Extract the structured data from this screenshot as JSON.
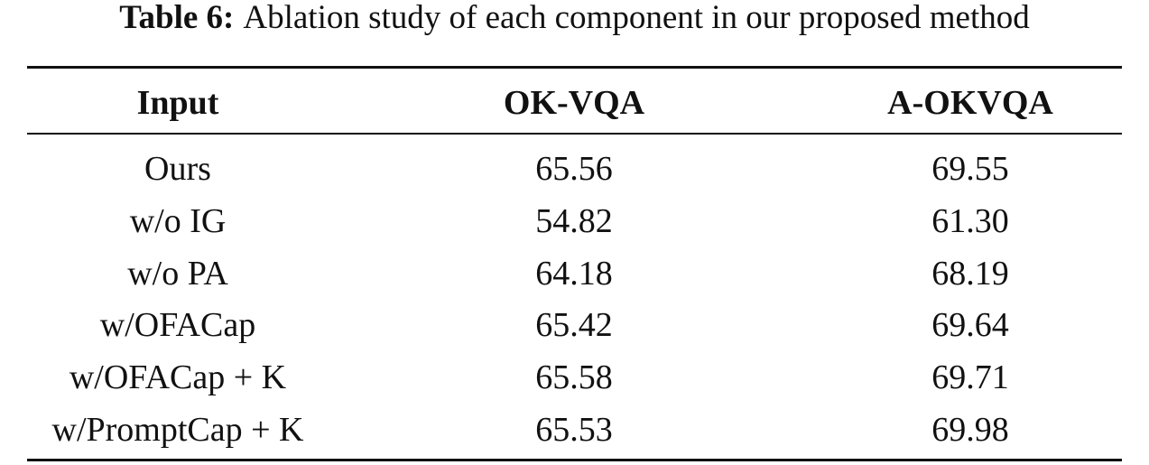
{
  "caption": {
    "label": "Table 6:",
    "text": "Ablation study of each component in our proposed method"
  },
  "table": {
    "header": [
      "Input",
      "OK-VQA",
      "A-OKVQA"
    ],
    "rows": [
      [
        "Ours",
        "65.56",
        "69.55"
      ],
      [
        "w/o IG",
        "54.82",
        "61.30"
      ],
      [
        "w/o PA",
        "64.18",
        "68.19"
      ],
      [
        "w/OFACap",
        "65.42",
        "69.64"
      ],
      [
        "w/OFACap + K",
        "65.58",
        "69.71"
      ],
      [
        "w/PromptCap + K",
        "65.53",
        "69.98"
      ]
    ]
  }
}
